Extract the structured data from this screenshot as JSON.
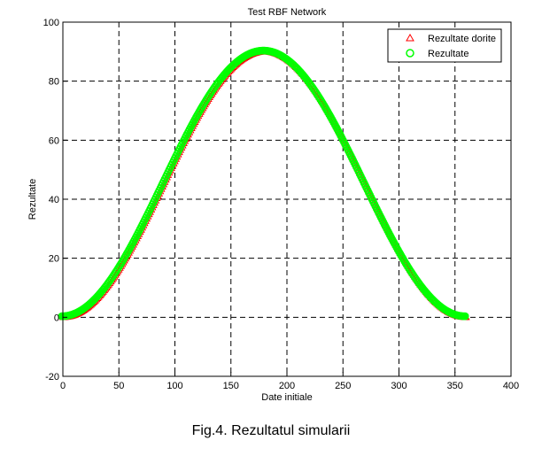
{
  "caption": "Fig.4. Rezultatul simularii",
  "chart_data": {
    "type": "scatter",
    "title": "Test RBF Network",
    "xlabel": "Date initiale",
    "ylabel": "Rezultate",
    "xlim": [
      0,
      400
    ],
    "ylim": [
      -20,
      100
    ],
    "xticks": [
      0,
      50,
      100,
      150,
      200,
      250,
      300,
      350,
      400
    ],
    "yticks": [
      -20,
      0,
      20,
      40,
      60,
      80,
      100
    ],
    "grid": true,
    "grid_style": "dashed",
    "legend_position": "top-right",
    "x_range": [
      0,
      360
    ],
    "x_step": 1,
    "function_description": "y = 90 * (1 - cos(x * pi / 180)) / 2",
    "series": [
      {
        "name": "Rezultate dorite",
        "marker": "triangle",
        "color": "#ff0000"
      },
      {
        "name": "Rezultate",
        "marker": "circle",
        "color": "#00ff00"
      }
    ]
  }
}
